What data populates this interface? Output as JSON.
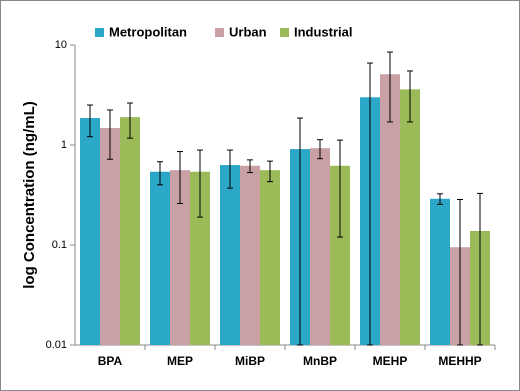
{
  "chart_data": {
    "type": "bar",
    "y_label": "log Concentration (ng/mL)",
    "yscale": "log",
    "categories": [
      "BPA",
      "MEP",
      "MiBP",
      "MnBP",
      "MEHP",
      "MEHHP"
    ],
    "series": [
      {
        "name": "Metropolitan",
        "color": "#2ba7c7",
        "values": [
          1.86,
          0.54,
          0.63,
          0.91,
          3.0,
          0.29
        ],
        "errors": [
          0.65,
          0.14,
          0.26,
          0.95,
          3.6,
          0.035
        ]
      },
      {
        "name": "Urban",
        "color": "#c9a0a3",
        "values": [
          1.48,
          0.56,
          0.62,
          0.93,
          5.1,
          0.095
        ],
        "errors": [
          0.76,
          0.3,
          0.09,
          0.2,
          3.4,
          0.19
        ]
      },
      {
        "name": "Industrial",
        "color": "#9bbb59",
        "values": [
          1.9,
          0.54,
          0.56,
          0.62,
          3.6,
          0.138
        ],
        "errors": [
          0.73,
          0.35,
          0.13,
          0.5,
          1.9,
          0.19
        ]
      }
    ],
    "ylim": [
      0.01,
      10
    ],
    "yticks": [
      0.01,
      0.1,
      1,
      10
    ],
    "legend": "top"
  }
}
